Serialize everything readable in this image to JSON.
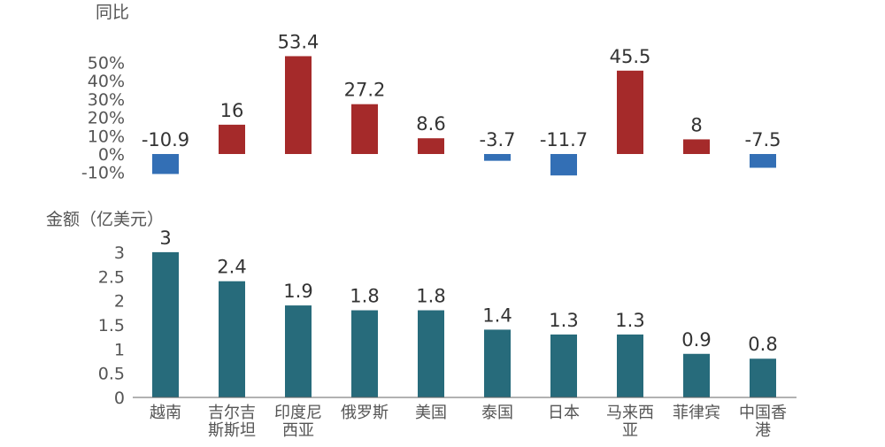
{
  "chart_data": [
    {
      "type": "bar",
      "ylabel": "同比",
      "categories": [
        "越南",
        "吉尔吉斯斯坦",
        "印度尼西亚",
        "俄罗斯",
        "美国",
        "泰国",
        "日本",
        "马来西亚",
        "菲律宾",
        "中国香港"
      ],
      "values": [
        -10.9,
        16,
        53.4,
        27.2,
        8.6,
        -3.7,
        -11.7,
        45.5,
        8,
        -7.5
      ],
      "value_labels": [
        "-10.9",
        "16",
        "53.4",
        "27.2",
        "8.6",
        "-3.7",
        "-11.7",
        "45.5",
        "8",
        "-7.5"
      ],
      "ylim": [
        -10,
        50
      ],
      "yticks": [
        -10,
        0,
        10,
        20,
        30,
        40,
        50
      ],
      "ytick_labels": [
        "-10%",
        "0%",
        "10%",
        "20%",
        "30%",
        "40%",
        "50%"
      ],
      "colors": {
        "positive": "#a52a2a",
        "negative": "#336fb5"
      },
      "grid": false,
      "legend": "none"
    },
    {
      "type": "bar",
      "ylabel": "金额（亿美元）",
      "categories": [
        "越南",
        "吉尔吉斯斯坦",
        "印度尼西亚",
        "俄罗斯",
        "美国",
        "泰国",
        "日本",
        "马来西亚",
        "菲律宾",
        "中国香港"
      ],
      "category_labels": [
        [
          "越南"
        ],
        [
          "吉尔吉",
          "斯斯坦"
        ],
        [
          "印度尼",
          "西亚"
        ],
        [
          "俄罗斯"
        ],
        [
          "美国"
        ],
        [
          "泰国"
        ],
        [
          "日本"
        ],
        [
          "马来西",
          "亚"
        ],
        [
          "菲律宾"
        ],
        [
          "中国香",
          "港"
        ]
      ],
      "values": [
        3,
        2.4,
        1.9,
        1.8,
        1.8,
        1.4,
        1.3,
        1.3,
        0.9,
        0.8
      ],
      "value_labels": [
        "3",
        "2.4",
        "1.9",
        "1.8",
        "1.8",
        "1.4",
        "1.3",
        "1.3",
        "0.9",
        "0.8"
      ],
      "ylim": [
        0,
        3
      ],
      "yticks": [
        0,
        0.5,
        1,
        1.5,
        2,
        2.5,
        3
      ],
      "ytick_labels": [
        "0",
        "0.5",
        "1",
        "1.5",
        "2",
        "2.5",
        "3"
      ],
      "colors": {
        "bar": "#276b7b"
      },
      "grid": false,
      "legend": "none"
    }
  ]
}
